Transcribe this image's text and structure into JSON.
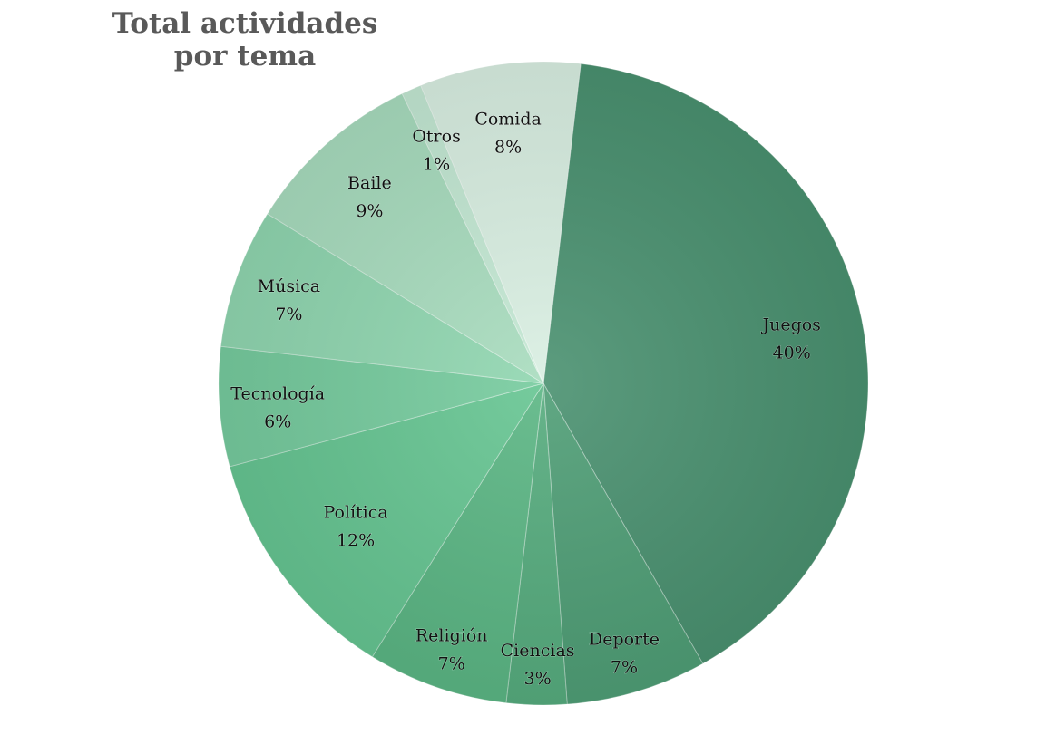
{
  "chart_data": {
    "type": "pie",
    "title_lines": [
      "Total actividades",
      "por tema"
    ],
    "start_angle_deg": 6.6,
    "direction": "clockwise",
    "slices": [
      {
        "category": "Juegos",
        "value": 40,
        "label": "40%",
        "color": "#4a9170"
      },
      {
        "category": "Deporte",
        "value": 7,
        "label": "7%",
        "color": "#4f9e76"
      },
      {
        "category": "Ciencias",
        "value": 3,
        "label": "3%",
        "color": "#56ac7e"
      },
      {
        "category": "Religión",
        "value": 7,
        "label": "7%",
        "color": "#5bb684"
      },
      {
        "category": "Política",
        "value": 12,
        "label": "12%",
        "color": "#66c592"
      },
      {
        "category": "Tecnología",
        "value": 6,
        "label": "6%",
        "color": "#76cb9e"
      },
      {
        "category": "Música",
        "value": 7,
        "label": "7%",
        "color": "#90d6b0"
      },
      {
        "category": "Baile",
        "value": 9,
        "label": "9%",
        "color": "#a8dcbe"
      },
      {
        "category": "Otros",
        "value": 1,
        "label": "1%",
        "color": "#c3e8d3"
      },
      {
        "category": "Comida",
        "value": 8,
        "label": "8%",
        "color": "#d9efe2"
      }
    ]
  }
}
